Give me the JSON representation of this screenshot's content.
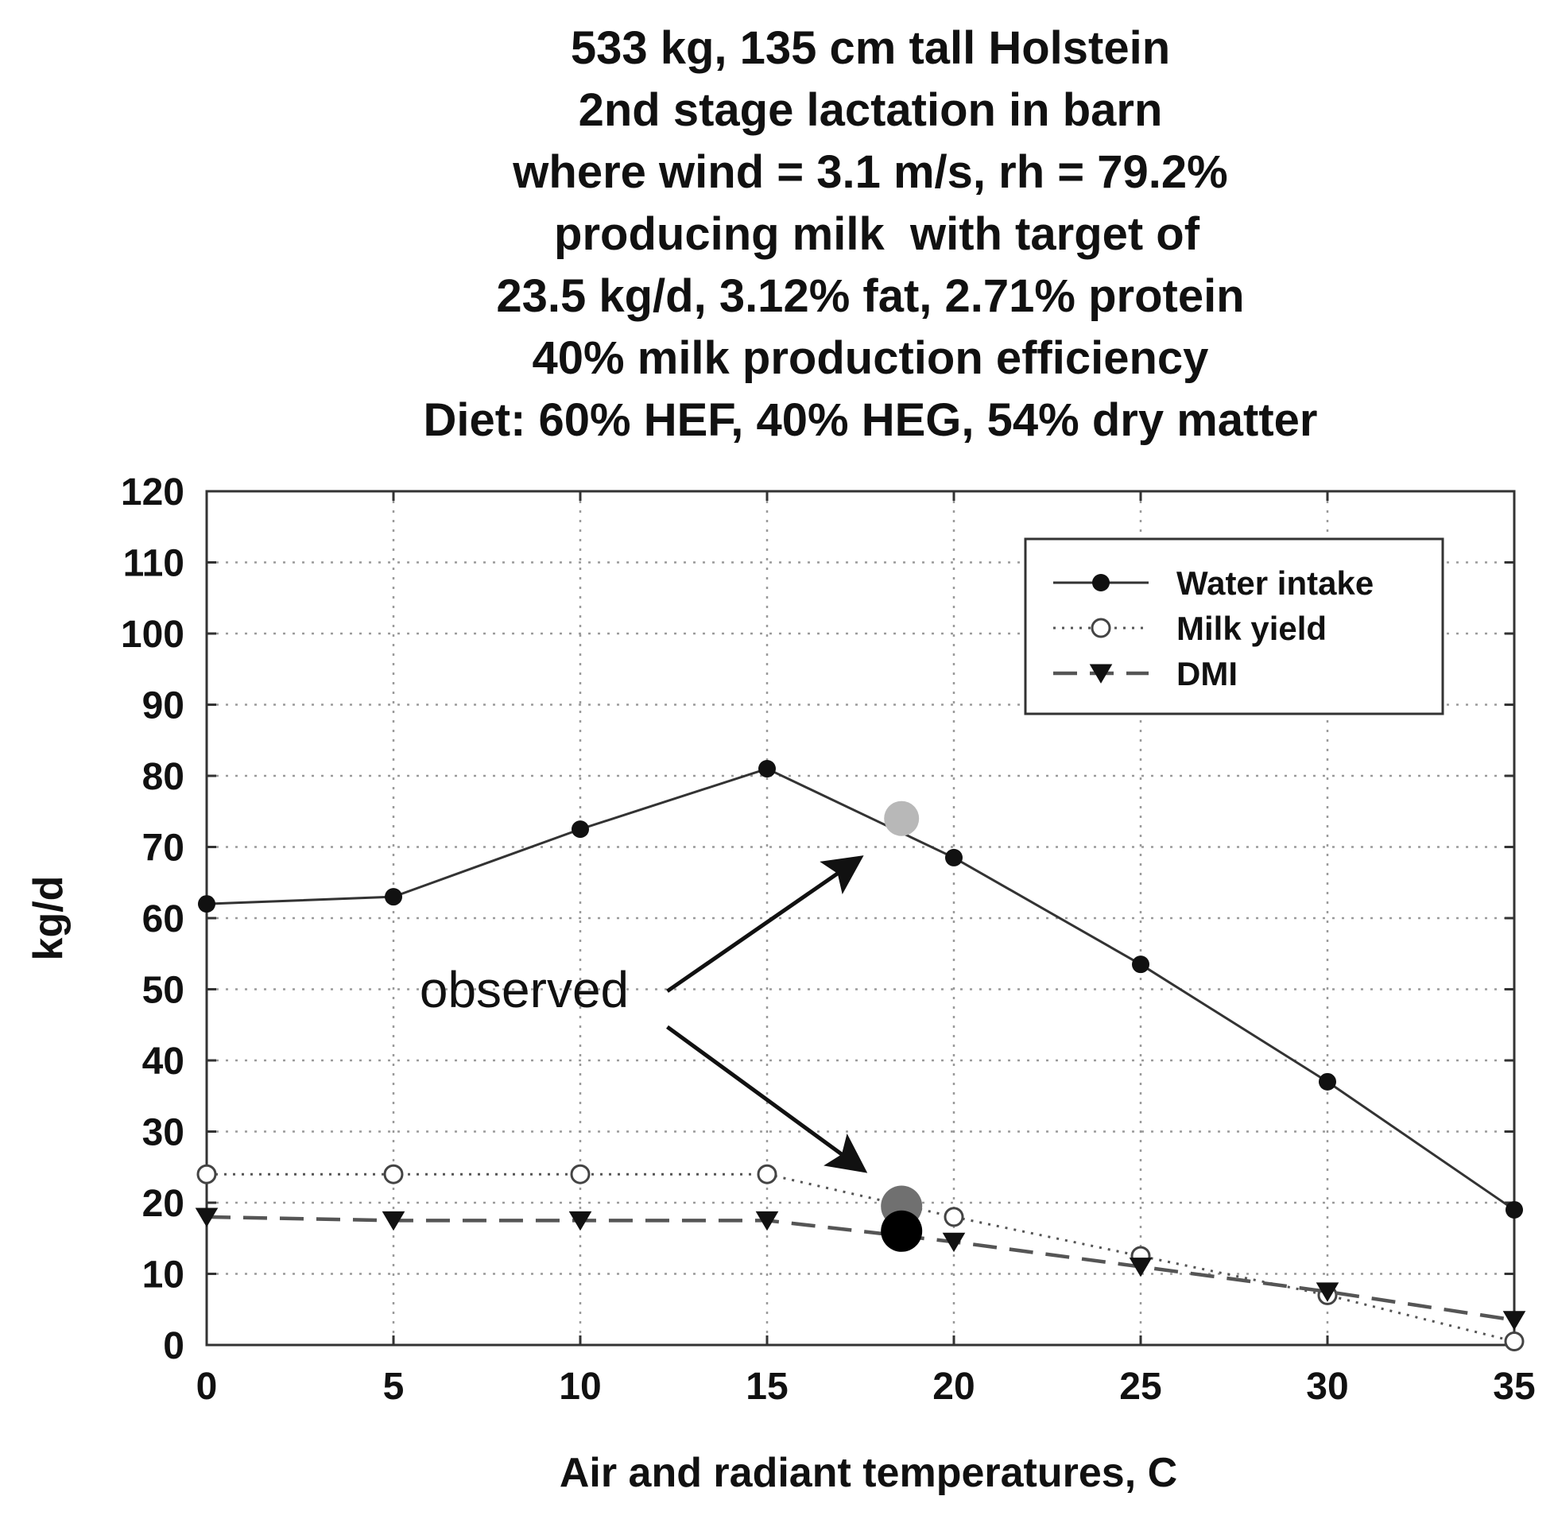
{
  "title_lines": [
    "533 kg, 135 cm tall Holstein",
    "2nd stage lactation in barn",
    "where wind = 3.1 m/s, rh = 79.2%",
    " producing milk  with target of",
    "23.5 kg/d, 3.12% fat, 2.71% protein",
    "40% milk production efficiency",
    "Diet: 60% HEF, 40% HEG, 54% dry matter"
  ],
  "chart_data": {
    "type": "line",
    "xlabel": "Air and radiant temperatures, C",
    "ylabel": "kg/d",
    "xlim": [
      0,
      35
    ],
    "ylim": [
      0,
      120
    ],
    "xticks": [
      0,
      5,
      10,
      15,
      20,
      25,
      30,
      35
    ],
    "yticks": [
      0,
      10,
      20,
      30,
      40,
      50,
      60,
      70,
      80,
      90,
      100,
      110,
      120
    ],
    "grid": true,
    "legend_position": "top-right",
    "x": [
      0,
      5,
      10,
      15,
      20,
      25,
      30,
      35
    ],
    "series": [
      {
        "name": "Water intake",
        "values": [
          62,
          63,
          72.5,
          81,
          68.5,
          53.5,
          37,
          19
        ],
        "line_style": "solid",
        "marker": "filled-circle",
        "color": "#333333"
      },
      {
        "name": "Milk yield",
        "values": [
          24,
          24,
          24,
          24,
          18,
          12.5,
          7,
          0.5
        ],
        "line_style": "dotted",
        "marker": "open-circle",
        "color": "#555555"
      },
      {
        "name": "DMI",
        "values": [
          18,
          17.5,
          17.5,
          17.5,
          14.5,
          11,
          7.5,
          3.5
        ],
        "line_style": "dashed",
        "marker": "filled-triangle-down",
        "color": "#555555"
      }
    ],
    "observed_points": [
      {
        "x": 18.6,
        "y": 74,
        "color": "#b8b8b8"
      },
      {
        "x": 18.6,
        "y": 19.5,
        "color": "#707070"
      },
      {
        "x": 18.6,
        "y": 16,
        "color": "#000000"
      }
    ],
    "annotation": {
      "text": "observed",
      "x": 8.5,
      "y": 47.5
    }
  }
}
